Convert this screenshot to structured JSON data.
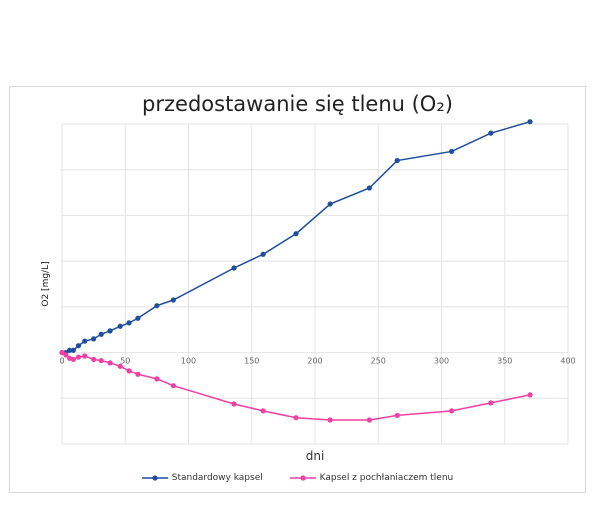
{
  "chart_data": {
    "type": "line",
    "title": "przedostawanie się tlenu (O₂)",
    "xlabel": "dni",
    "ylabel": "O2 [mg/L]",
    "xlim": [
      0,
      400
    ],
    "x_ticks": [
      0,
      50,
      100,
      150,
      200,
      250,
      300,
      350,
      400
    ],
    "ylim": [
      -4,
      10
    ],
    "grid": true,
    "legend_position": "bottom",
    "series": [
      {
        "name": "Standardowy kapsel",
        "color": "#1f4e9c",
        "points": [
          [
            0,
            0
          ],
          [
            3,
            0
          ],
          [
            6,
            0.1
          ],
          [
            9,
            0.1
          ],
          [
            13,
            0.3
          ],
          [
            18,
            0.5
          ],
          [
            25,
            0.6
          ],
          [
            31,
            0.8
          ],
          [
            38,
            0.95
          ],
          [
            46,
            1.15
          ],
          [
            53,
            1.3
          ],
          [
            60,
            1.5
          ],
          [
            75,
            2.05
          ],
          [
            88,
            2.3
          ],
          [
            136,
            3.7
          ],
          [
            159,
            4.3
          ],
          [
            185,
            5.2
          ],
          [
            212,
            6.5
          ],
          [
            243,
            7.2
          ],
          [
            265,
            8.4
          ],
          [
            308,
            8.8
          ],
          [
            339,
            9.6
          ],
          [
            370,
            10.1
          ]
        ]
      },
      {
        "name": "Kapsel z pochłaniaczem tlenu",
        "color": "#f23fa5",
        "points": [
          [
            0,
            0
          ],
          [
            3,
            -0.1
          ],
          [
            6,
            -0.25
          ],
          [
            9,
            -0.3
          ],
          [
            13,
            -0.2
          ],
          [
            18,
            -0.15
          ],
          [
            25,
            -0.3
          ],
          [
            31,
            -0.35
          ],
          [
            38,
            -0.45
          ],
          [
            46,
            -0.6
          ],
          [
            53,
            -0.8
          ],
          [
            60,
            -0.95
          ],
          [
            75,
            -1.15
          ],
          [
            88,
            -1.45
          ],
          [
            136,
            -2.25
          ],
          [
            159,
            -2.55
          ],
          [
            185,
            -2.85
          ],
          [
            212,
            -2.95
          ],
          [
            243,
            -2.95
          ],
          [
            265,
            -2.75
          ],
          [
            308,
            -2.55
          ],
          [
            339,
            -2.2
          ],
          [
            370,
            -1.85
          ]
        ]
      }
    ]
  }
}
